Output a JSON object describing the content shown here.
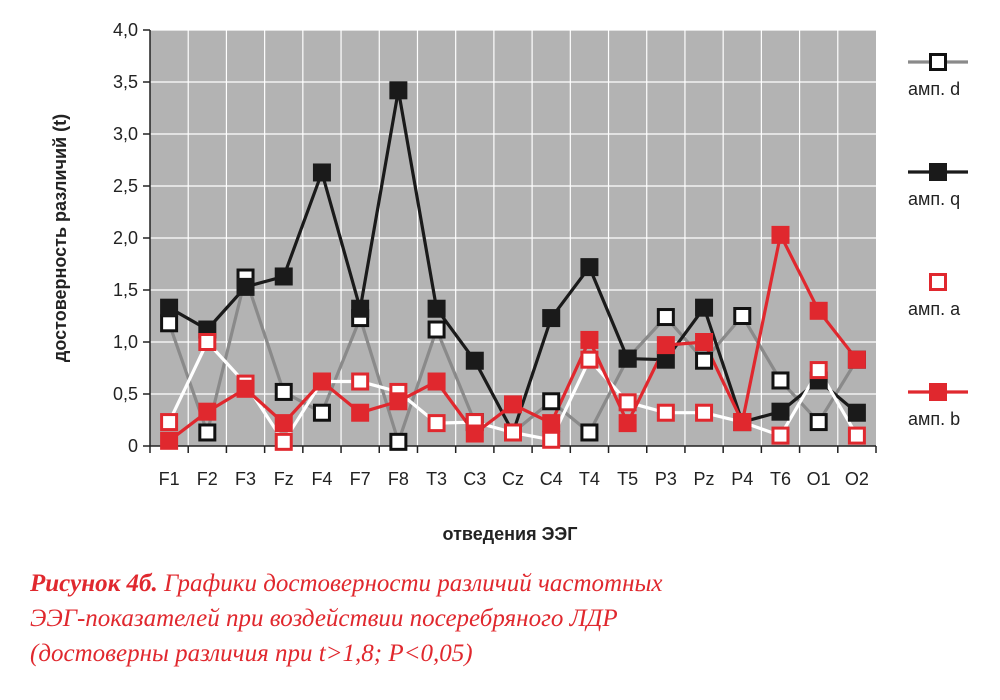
{
  "chart_data": {
    "type": "line",
    "xlabel": "отведения ЭЭГ",
    "ylabel": "достоверность различий (t)",
    "ylim": [
      0,
      4
    ],
    "yticks": [
      "0",
      "0,5",
      "1,0",
      "1,5",
      "2,0",
      "2,5",
      "3,0",
      "3,5",
      "4,0"
    ],
    "categories": [
      "F1",
      "F2",
      "F3",
      "Fz",
      "F4",
      "F7",
      "F8",
      "T3",
      "C3",
      "Cz",
      "C4",
      "T4",
      "T5",
      "P3",
      "Pz",
      "P4",
      "T6",
      "O1",
      "O2"
    ],
    "grid": true,
    "legend_position": "right",
    "series": [
      {
        "name": "амп. d",
        "line_color": "#8a8a8a",
        "marker_fill": "#ffffff",
        "marker_stroke": "#111111",
        "values": [
          1.18,
          0.13,
          1.62,
          0.52,
          0.32,
          1.23,
          0.04,
          1.12,
          0.23,
          0.13,
          0.43,
          0.13,
          0.84,
          1.24,
          0.82,
          1.25,
          0.63,
          0.23,
          0.83
        ]
      },
      {
        "name": "амп. q",
        "line_color": "#1a1a1a",
        "marker_fill": "#1a1a1a",
        "marker_stroke": "#1a1a1a",
        "values": [
          1.33,
          1.12,
          1.53,
          1.63,
          2.63,
          1.32,
          3.42,
          1.32,
          0.82,
          0.13,
          1.23,
          1.72,
          0.84,
          0.83,
          1.33,
          0.23,
          0.33,
          0.63,
          0.32
        ]
      },
      {
        "name": "амп. a",
        "line_color": "#ffffff",
        "marker_fill": "#ffffff",
        "marker_stroke": "#e0282e",
        "values": [
          0.23,
          1.0,
          0.6,
          0.04,
          0.62,
          0.62,
          0.52,
          0.22,
          0.23,
          0.13,
          0.06,
          0.83,
          0.42,
          0.32,
          0.32,
          0.23,
          0.1,
          0.73,
          0.1
        ]
      },
      {
        "name": "амп. b",
        "line_color": "#e0282e",
        "marker_fill": "#e0282e",
        "marker_stroke": "#e0282e",
        "values": [
          0.05,
          0.33,
          0.55,
          0.22,
          0.62,
          0.32,
          0.43,
          0.62,
          0.12,
          0.4,
          0.22,
          1.02,
          0.22,
          0.97,
          1.0,
          0.23,
          2.03,
          1.3,
          0.83
        ]
      }
    ]
  },
  "caption": {
    "lead": "Рисунок 4б.",
    "line1_rest": " Графики достоверности различий частотных",
    "line2": "ЭЭГ-показателей при воздействии посеребряного ЛДР",
    "line3": "(достоверны различия при t>1,8; P<0,05)"
  }
}
